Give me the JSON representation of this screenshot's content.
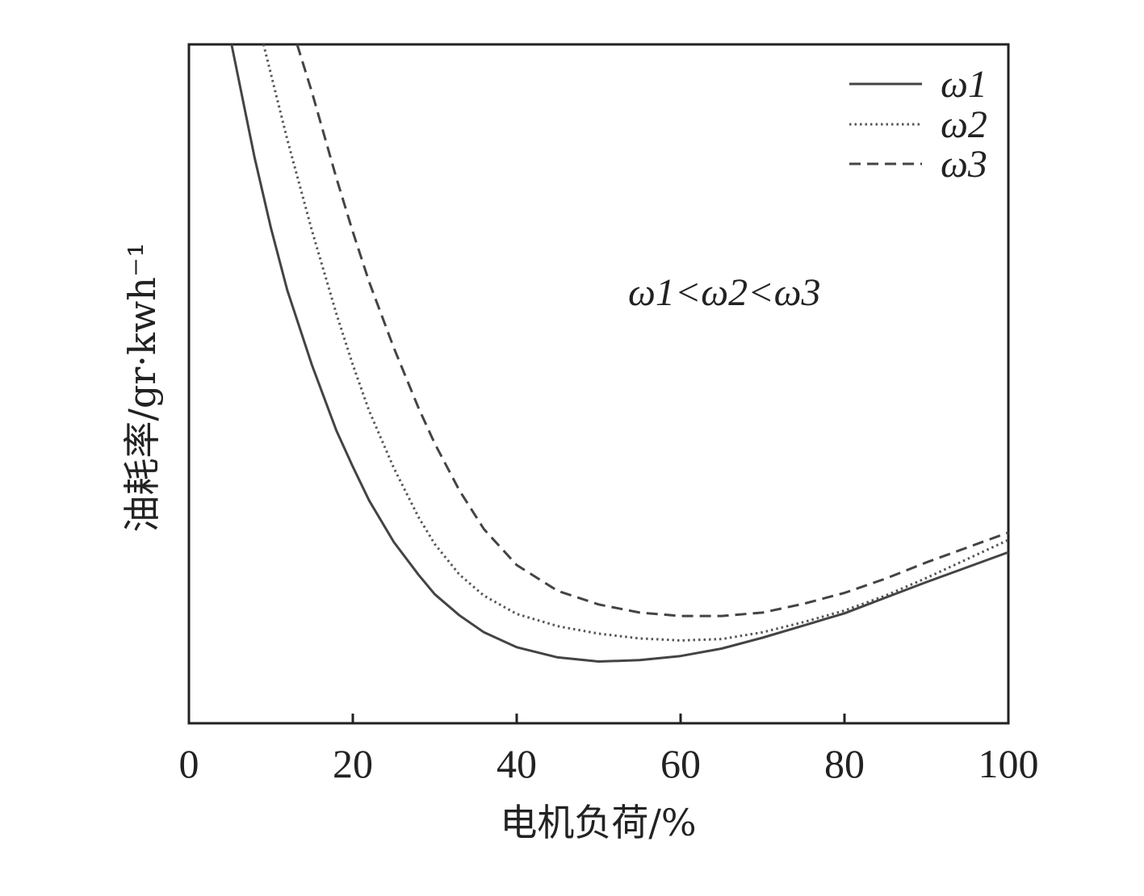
{
  "chart_data": {
    "type": "line",
    "title": "",
    "xlabel": "电机负荷/%",
    "ylabel": "油耗率/gr·kwh⁻¹",
    "xlim": [
      0,
      100
    ],
    "ylim": [
      0,
      100
    ],
    "y_ticks_shown": false,
    "x_ticks": [
      0,
      20,
      40,
      60,
      80,
      100
    ],
    "x_tick_labels": [
      "0",
      "20",
      "40",
      "60",
      "80",
      "100"
    ],
    "grid": false,
    "legend_position": "top-right",
    "annotation": "ω1<ω2<ω3",
    "series": [
      {
        "name": "ω1",
        "line_style": "solid",
        "color": "#444444",
        "x": [
          5.2,
          8,
          10,
          12,
          15,
          18,
          20,
          22,
          25,
          28,
          30,
          33,
          36,
          40,
          45,
          50,
          55,
          60,
          65,
          70,
          75,
          80,
          85,
          90,
          95,
          100
        ],
        "y": [
          100,
          83.4,
          73.0,
          63.8,
          52.8,
          43.1,
          37.8,
          32.8,
          26.7,
          21.9,
          19.0,
          15.9,
          13.4,
          11.2,
          9.7,
          9.1,
          9.3,
          9.9,
          11.0,
          12.6,
          14.4,
          16.2,
          18.5,
          20.8,
          23.0,
          25.2
        ]
      },
      {
        "name": "ω2",
        "line_style": "dotted",
        "color": "#555555",
        "x": [
          9.1,
          12,
          15,
          18,
          20,
          22,
          25,
          28,
          30,
          33,
          36,
          40,
          45,
          50,
          55,
          60,
          65,
          70,
          75,
          80,
          85,
          90,
          95,
          100
        ],
        "y": [
          100,
          86.0,
          72.6,
          60.3,
          52.8,
          46.0,
          37.6,
          30.4,
          26.4,
          21.9,
          18.8,
          16.1,
          14.3,
          13.2,
          12.5,
          12.2,
          12.4,
          13.4,
          14.9,
          16.6,
          18.8,
          21.4,
          24.2,
          27.0
        ]
      },
      {
        "name": "ω3",
        "line_style": "dashed",
        "color": "#444444",
        "x": [
          13.2,
          15,
          18,
          20,
          22,
          25,
          28,
          30,
          33,
          36,
          40,
          45,
          50,
          55,
          60,
          65,
          70,
          75,
          80,
          85,
          90,
          95,
          100
        ],
        "y": [
          100,
          93.0,
          80.3,
          72.4,
          65.0,
          55.3,
          46.5,
          41.2,
          34.3,
          28.6,
          23.3,
          19.5,
          17.5,
          16.3,
          15.8,
          15.8,
          16.3,
          17.6,
          19.2,
          21.3,
          23.7,
          25.9,
          28.1
        ]
      }
    ]
  }
}
